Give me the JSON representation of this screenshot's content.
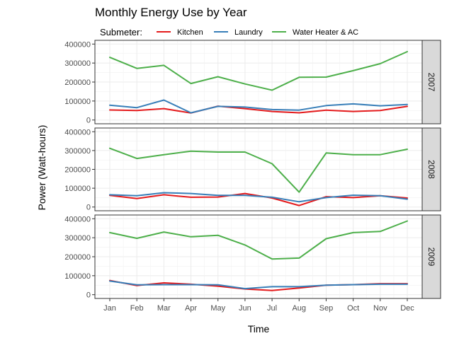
{
  "chart_data": {
    "type": "line",
    "title": "Monthly Energy Use by Year",
    "xlabel": "Time",
    "ylabel": "Power (Watt-hours)",
    "legend": {
      "title": "Submeter:",
      "placement": "top-left"
    },
    "categories": [
      "Jan",
      "Feb",
      "Mar",
      "Apr",
      "May",
      "Jun",
      "Jul",
      "Aug",
      "Sep",
      "Oct",
      "Nov",
      "Dec"
    ],
    "ylim": [
      0,
      400000
    ],
    "yticks": [
      0,
      100000,
      200000,
      300000,
      400000
    ],
    "ytick_labels": [
      "0",
      "100000",
      "200000",
      "300000",
      "400000"
    ],
    "grid": true,
    "series_colors": {
      "Kitchen": "#e41a1c",
      "Laundry": "#377eb8",
      "Water Heater & AC": "#4daf4a"
    },
    "panels": [
      {
        "facet": "2007",
        "series": [
          {
            "name": "Kitchen",
            "values": [
              53000,
              50000,
              60000,
              37000,
              73000,
              60000,
              45000,
              38000,
              52000,
              45000,
              50000,
              72000
            ]
          },
          {
            "name": "Laundry",
            "values": [
              78000,
              65000,
              105000,
              38000,
              72000,
              68000,
              55000,
              52000,
              76000,
              85000,
              75000,
              82000
            ]
          },
          {
            "name": "Water Heater & AC",
            "values": [
              330000,
              272000,
              288000,
              192000,
              228000,
              190000,
              157000,
              225000,
              226000,
              260000,
              297000,
              360000
            ]
          }
        ]
      },
      {
        "facet": "2008",
        "series": [
          {
            "name": "Kitchen",
            "values": [
              62000,
              45000,
              65000,
              52000,
              53000,
              72000,
              48000,
              8000,
              55000,
              50000,
              60000,
              48000
            ]
          },
          {
            "name": "Laundry",
            "values": [
              65000,
              60000,
              76000,
              72000,
              62000,
              62000,
              52000,
              28000,
              50000,
              63000,
              60000,
              42000
            ]
          },
          {
            "name": "Water Heater & AC",
            "values": [
              312000,
              258000,
              278000,
              297000,
              292000,
              292000,
              230000,
              79000,
              287000,
              278000,
              278000,
              307000
            ]
          }
        ]
      },
      {
        "facet": "2009",
        "series": [
          {
            "name": "Kitchen",
            "values": [
              75000,
              48000,
              62000,
              55000,
              45000,
              30000,
              22000,
              35000,
              50000,
              53000,
              58000,
              58000
            ]
          },
          {
            "name": "Laundry",
            "values": [
              72000,
              52000,
              53000,
              53000,
              52000,
              32000,
              42000,
              42000,
              50000,
              53000,
              55000,
              55000
            ]
          },
          {
            "name": "Water Heater & AC",
            "values": [
              327000,
              297000,
              330000,
              305000,
              313000,
              262000,
              188000,
              193000,
              295000,
              327000,
              333000,
              388000
            ]
          }
        ]
      }
    ]
  }
}
